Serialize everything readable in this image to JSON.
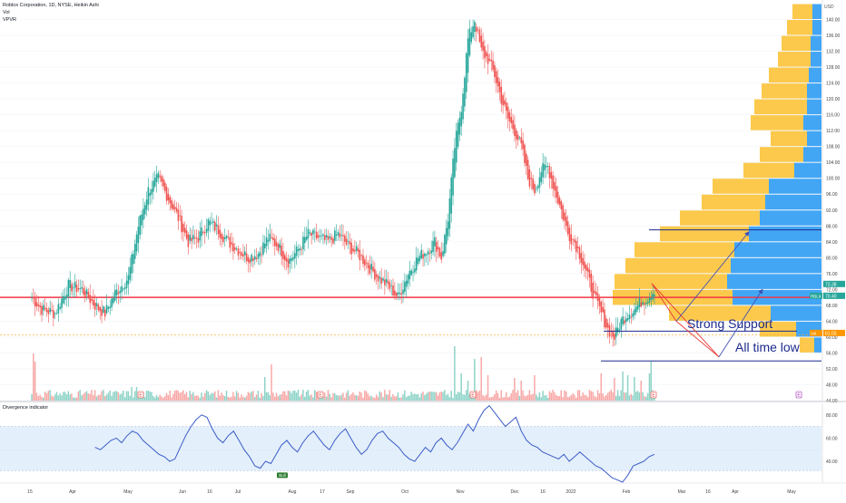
{
  "header": {
    "title": "Roblox Corporation, 1D, NYSE, Heikin Ashi",
    "vol_label": "Vol",
    "vpvr_label": "VPVR",
    "indicator_title": "Divergence indicator",
    "currency": "USD"
  },
  "colors": {
    "up": "#26a69a",
    "down": "#ef5350",
    "vol_up": "#8fd3c8",
    "vol_down": "#f7a9a7",
    "support": "#f23645",
    "drawing": "#1c2a8c",
    "vp_blue": "#2196f3",
    "vp_gold": "#fbc02d",
    "indicator_line": "#3b5cc8",
    "indicator_band": "#e3effb"
  },
  "chart_data": [
    {
      "type": "candlestick",
      "title": "Roblox Corporation, 1D, NYSE, Heikin Ashi",
      "price_axis": {
        "min": 44,
        "max": 144,
        "ticks": [
          44,
          48,
          52,
          56,
          60,
          64,
          68,
          72,
          76,
          80,
          84,
          88,
          92,
          96,
          100,
          104,
          108,
          112,
          116,
          120,
          124,
          128,
          132,
          136,
          140
        ]
      },
      "time_axis": [
        "15",
        "Apr",
        "May",
        "Jun",
        "16",
        "Jul",
        "Aug",
        "17",
        "Sep",
        "Oct",
        "Nov",
        "Dec",
        "16",
        "2022",
        "Feb",
        "Mar",
        "16",
        "Apr",
        "May"
      ],
      "price_path": [
        [
          0,
          70
        ],
        [
          6,
          67
        ],
        [
          14,
          66
        ],
        [
          22,
          73
        ],
        [
          30,
          72
        ],
        [
          38,
          68
        ],
        [
          44,
          66
        ],
        [
          50,
          71
        ],
        [
          58,
          75
        ],
        [
          64,
          88
        ],
        [
          70,
          97
        ],
        [
          76,
          100
        ],
        [
          82,
          95
        ],
        [
          88,
          90
        ],
        [
          94,
          84
        ],
        [
          100,
          85
        ],
        [
          106,
          89
        ],
        [
          112,
          87
        ],
        [
          118,
          84
        ],
        [
          124,
          82
        ],
        [
          130,
          80
        ],
        [
          136,
          81
        ],
        [
          142,
          85
        ],
        [
          148,
          83
        ],
        [
          154,
          79
        ],
        [
          160,
          82
        ],
        [
          166,
          86
        ],
        [
          172,
          85
        ],
        [
          178,
          84
        ],
        [
          184,
          86
        ],
        [
          190,
          83
        ],
        [
          196,
          81
        ],
        [
          202,
          78
        ],
        [
          208,
          75
        ],
        [
          214,
          73
        ],
        [
          220,
          70
        ],
        [
          226,
          76
        ],
        [
          232,
          80
        ],
        [
          238,
          82
        ],
        [
          242,
          84
        ],
        [
          246,
          80
        ],
        [
          250,
          90
        ],
        [
          254,
          108
        ],
        [
          258,
          118
        ],
        [
          262,
          135
        ],
        [
          266,
          140
        ],
        [
          270,
          132
        ],
        [
          274,
          130
        ],
        [
          278,
          126
        ],
        [
          282,
          120
        ],
        [
          286,
          115
        ],
        [
          290,
          112
        ],
        [
          294,
          108
        ],
        [
          298,
          100
        ],
        [
          302,
          97
        ],
        [
          306,
          102
        ],
        [
          310,
          103
        ],
        [
          314,
          97
        ],
        [
          318,
          92
        ],
        [
          322,
          86
        ],
        [
          326,
          84
        ],
        [
          330,
          80
        ],
        [
          334,
          75
        ],
        [
          338,
          70
        ],
        [
          342,
          66
        ],
        [
          346,
          62
        ],
        [
          350,
          60
        ],
        [
          354,
          64
        ],
        [
          358,
          66
        ],
        [
          362,
          67
        ],
        [
          366,
          69
        ],
        [
          370,
          70
        ],
        [
          374,
          72
        ]
      ],
      "volume": {
        "spikes": [
          [
            1,
            52
          ],
          [
            2,
            43
          ],
          [
            60,
            15
          ],
          [
            63,
            15
          ],
          [
            140,
            26
          ],
          [
            144,
            40
          ],
          [
            160,
            12
          ],
          [
            254,
            60
          ],
          [
            258,
            30
          ],
          [
            262,
            22
          ],
          [
            266,
            46
          ],
          [
            270,
            48
          ],
          [
            274,
            28
          ],
          [
            290,
            25
          ],
          [
            294,
            22
          ],
          [
            302,
            28
          ],
          [
            342,
            30
          ],
          [
            350,
            25
          ],
          [
            355,
            32
          ],
          [
            358,
            28
          ],
          [
            362,
            26
          ],
          [
            366,
            22
          ],
          [
            371,
            30
          ],
          [
            372,
            43
          ]
        ]
      },
      "levels": [
        {
          "name": "support",
          "price": 70.0
        },
        {
          "name": "drawn-high",
          "price": 87.0
        },
        {
          "name": "drawn-mid",
          "price": 61.5
        },
        {
          "name": "all-time-low",
          "price": 54.0
        }
      ],
      "annotations": [
        "Strong Support",
        "All time low"
      ],
      "markers": {
        "earnings": "E",
        "bull_label": "Bull"
      },
      "price_tags": [
        {
          "label": "73.38",
          "price": 73.38,
          "color": "#26a69a"
        },
        {
          "label": "70.40",
          "price": 70.4,
          "color": "#26a69a",
          "prefix": "RBLX"
        },
        {
          "label": "61.03",
          "price": 61.03,
          "color": "#ff9800",
          "prefix": "Vol"
        }
      ],
      "volume_profile": [
        {
          "price": 140,
          "gold": 22,
          "blue": 10
        },
        {
          "price": 136,
          "gold": 28,
          "blue": 10
        },
        {
          "price": 132,
          "gold": 32,
          "blue": 12
        },
        {
          "price": 128,
          "gold": 36,
          "blue": 12
        },
        {
          "price": 124,
          "gold": 44,
          "blue": 14
        },
        {
          "price": 120,
          "gold": 50,
          "blue": 16
        },
        {
          "price": 116,
          "gold": 58,
          "blue": 16
        },
        {
          "price": 112,
          "gold": 58,
          "blue": 20
        },
        {
          "price": 108,
          "gold": 40,
          "blue": 16
        },
        {
          "price": 104,
          "gold": 48,
          "blue": 20
        },
        {
          "price": 100,
          "gold": 56,
          "blue": 30
        },
        {
          "price": 96,
          "gold": 62,
          "blue": 58
        },
        {
          "price": 92,
          "gold": 70,
          "blue": 62
        },
        {
          "price": 88,
          "gold": 88,
          "blue": 68
        },
        {
          "price": 84,
          "gold": 98,
          "blue": 80
        },
        {
          "price": 80,
          "gold": 110,
          "blue": 96
        },
        {
          "price": 76,
          "gold": 116,
          "blue": 100
        },
        {
          "price": 72,
          "gold": 124,
          "blue": 104
        },
        {
          "price": 68,
          "gold": 132,
          "blue": 98
        },
        {
          "price": 64,
          "gold": 112,
          "blue": 56
        },
        {
          "price": 60,
          "gold": 40,
          "blue": 28
        },
        {
          "price": 56,
          "gold": 16,
          "blue": 8
        }
      ]
    },
    {
      "type": "line",
      "title": "Divergence indicator",
      "y_ticks": [
        40,
        60,
        80
      ],
      "ylim": [
        22,
        90
      ],
      "band": [
        32,
        70
      ],
      "midline": 50,
      "start_index": 38,
      "values": [
        52,
        50,
        54,
        58,
        60,
        56,
        62,
        66,
        64,
        58,
        54,
        50,
        46,
        44,
        40,
        42,
        52,
        62,
        70,
        76,
        80,
        78,
        68,
        60,
        56,
        62,
        66,
        58,
        50,
        44,
        36,
        34,
        40,
        38,
        46,
        54,
        58,
        52,
        48,
        56,
        62,
        66,
        60,
        54,
        50,
        58,
        64,
        68,
        60,
        52,
        46,
        50,
        58,
        64,
        66,
        60,
        56,
        52,
        46,
        42,
        40,
        46,
        52,
        48,
        56,
        60,
        54,
        50,
        56,
        64,
        72,
        66,
        76,
        84,
        88,
        82,
        76,
        70,
        74,
        78,
        66,
        58,
        54,
        52,
        48,
        46,
        44,
        42,
        46,
        40,
        44,
        48,
        44,
        40,
        36,
        34,
        30,
        26,
        24,
        22,
        28,
        36,
        38,
        40,
        44,
        46
      ]
    }
  ]
}
